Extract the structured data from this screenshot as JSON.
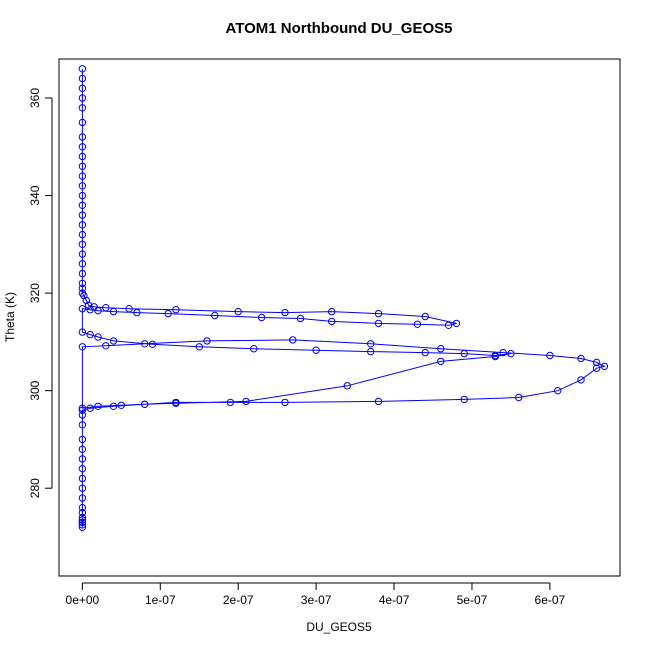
{
  "chart_data": {
    "type": "line",
    "title": "ATOM1 Northbound DU_GEOS5",
    "xlabel": "DU_GEOS5",
    "ylabel": "Theta (K)",
    "xlim": [
      -3e-08,
      6.9e-07
    ],
    "ylim": [
      262,
      368
    ],
    "x_ticks": [
      0,
      1e-07,
      2e-07,
      3e-07,
      4e-07,
      5e-07,
      6e-07
    ],
    "x_tick_labels": [
      "0e+00",
      "1e-07",
      "2e-07",
      "3e-07",
      "4e-07",
      "5e-07",
      "6e-07"
    ],
    "y_ticks": [
      280,
      300,
      320,
      340,
      360
    ],
    "y_tick_labels": [
      "280",
      "300",
      "320",
      "340",
      "360"
    ],
    "grid": false,
    "marker": "open-circle",
    "color": "#0000ff",
    "series": [
      {
        "x": [
          0,
          0,
          0,
          0,
          0,
          0,
          0,
          0,
          0,
          0,
          0,
          0,
          0,
          0,
          0,
          0,
          0,
          0,
          0,
          0,
          0,
          0,
          0,
          0,
          2e-09,
          5e-09,
          8e-09,
          1.5e-08,
          3e-08,
          6e-08,
          1.2e-07,
          2e-07,
          2.6e-07,
          3.2e-07,
          3.8e-07,
          4.4e-07,
          4.8e-07,
          4.7e-07,
          4.3e-07,
          3.8e-07,
          3.2e-07,
          2.8e-07,
          2.3e-07,
          1.7e-07,
          1.1e-07,
          7e-08,
          4e-08,
          2e-08,
          1e-08,
          0,
          0,
          1e-08,
          2e-08,
          4e-08,
          9e-08,
          1.5e-07,
          2.2e-07,
          3e-07,
          3.7e-07,
          4.4e-07,
          4.9e-07,
          5.3e-07,
          5.5e-07,
          5.3e-07,
          4.6e-07,
          3.4e-07,
          2.1e-07,
          1.2e-07,
          8e-08,
          5e-08,
          2e-08,
          0,
          0,
          3e-08,
          8e-08,
          1.6e-07,
          2.7e-07,
          3.7e-07,
          4.6e-07,
          5.4e-07,
          6e-07,
          6.4e-07,
          6.6e-07,
          6.7e-07,
          6.6e-07,
          6.4e-07,
          6.1e-07,
          5.6e-07,
          4.9e-07,
          3.8e-07,
          2.6e-07,
          1.9e-07,
          1.2e-07,
          8e-08,
          4e-08,
          1e-08,
          0,
          0,
          0,
          0,
          0,
          0,
          0,
          0,
          0,
          0,
          0,
          0,
          0,
          0,
          0,
          0,
          0
        ],
        "y": [
          366,
          364,
          362,
          360,
          358,
          355,
          352,
          350,
          348,
          346,
          344,
          342,
          340,
          338,
          336,
          334,
          332,
          330,
          328,
          326,
          324,
          322,
          321,
          320,
          319.5,
          318.5,
          317.5,
          317.2,
          317.0,
          316.8,
          316.6,
          316.2,
          316.0,
          316.2,
          315.8,
          315.2,
          313.8,
          313.4,
          313.6,
          313.8,
          314.2,
          314.8,
          315.0,
          315.4,
          315.8,
          316.0,
          316.2,
          316.4,
          316.6,
          316.8,
          312.0,
          311.5,
          311.0,
          310.2,
          309.5,
          309.0,
          308.6,
          308.3,
          308.0,
          307.8,
          307.6,
          307.2,
          307.6,
          307.0,
          306.0,
          301.0,
          297.8,
          297.4,
          297.2,
          297.0,
          296.8,
          296.4,
          309.0,
          309.2,
          309.6,
          310.2,
          310.4,
          309.6,
          308.6,
          307.8,
          307.2,
          306.6,
          305.8,
          305.0,
          304.6,
          302.2,
          300.0,
          298.6,
          298.2,
          297.8,
          297.6,
          297.6,
          297.6,
          297.2,
          296.8,
          296.4,
          296.0,
          295,
          293,
          290,
          288,
          286,
          284,
          282,
          280,
          278,
          276,
          275,
          274,
          273.5,
          273,
          272.5,
          272
        ]
      }
    ]
  }
}
